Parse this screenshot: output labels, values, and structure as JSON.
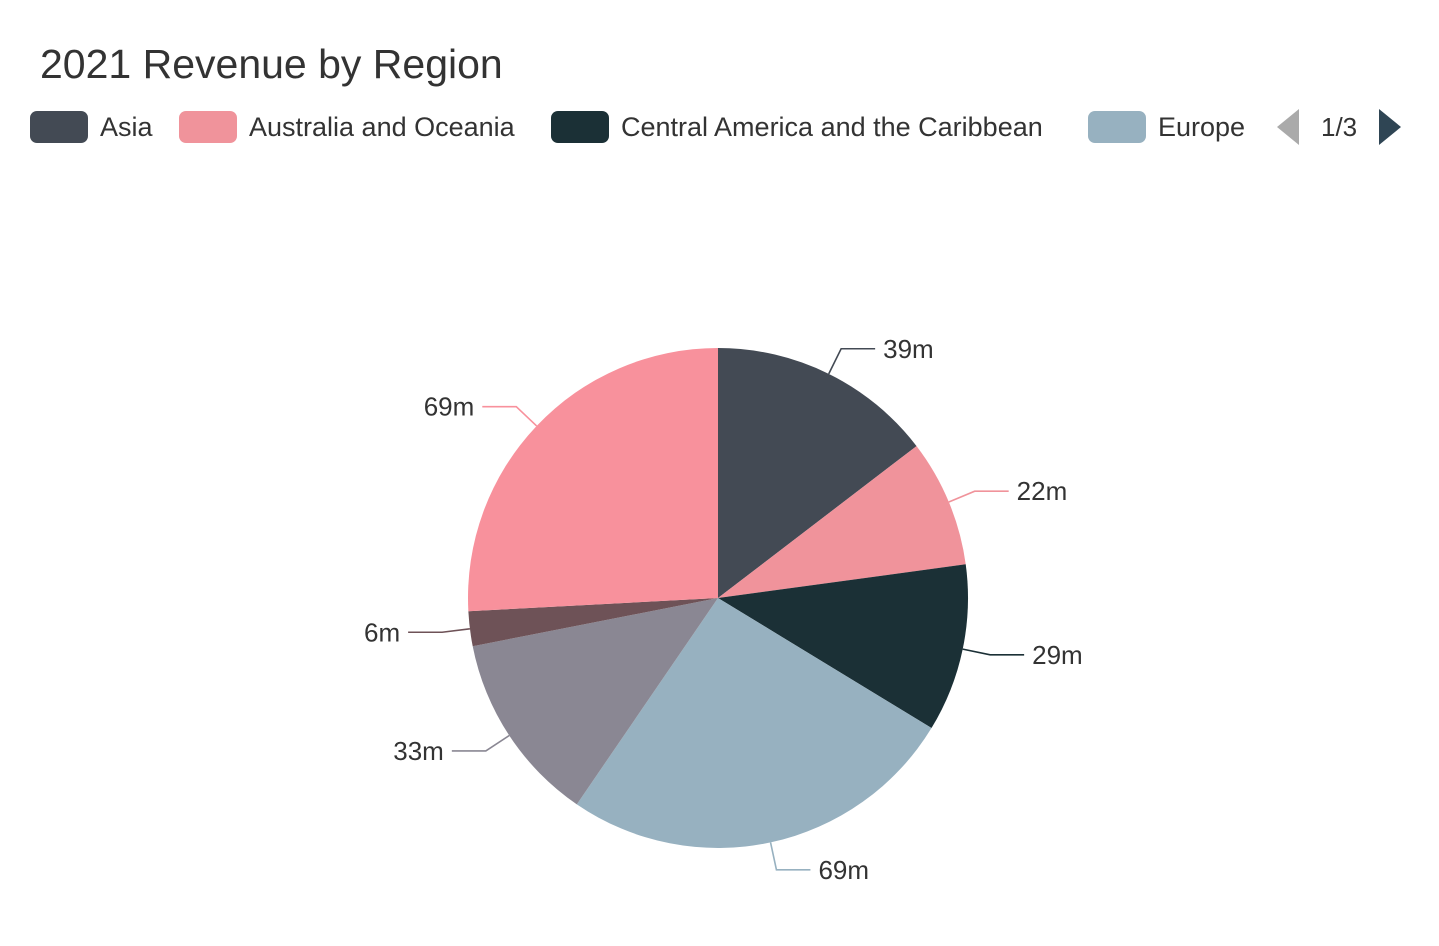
{
  "chart_data": {
    "type": "pie",
    "title": "2021 Revenue by Region",
    "unit": "m",
    "legend": {
      "placement": "top",
      "visible_items": [
        {
          "name": "Asia",
          "color": "#434a54"
        },
        {
          "name": "Australia and Oceania",
          "color": "#f0939b"
        },
        {
          "name": "Central America and the Caribbean",
          "color": "#1b3036"
        },
        {
          "name": "Europe",
          "color": "#97b1c0"
        }
      ],
      "page_label": "1/3"
    },
    "slices": [
      {
        "value": 39,
        "label": "39m",
        "color": "#434a54"
      },
      {
        "value": 22,
        "label": "22m",
        "color": "#f0939b"
      },
      {
        "value": 29,
        "label": "29m",
        "color": "#1b3036"
      },
      {
        "value": 69,
        "label": "69m",
        "color": "#97b1c0"
      },
      {
        "value": 33,
        "label": "33m",
        "color": "#8a8793"
      },
      {
        "value": 6,
        "label": "6m",
        "color": "#6e5257"
      },
      {
        "value": 69,
        "label": "69m",
        "color": "#f8919c"
      }
    ]
  }
}
